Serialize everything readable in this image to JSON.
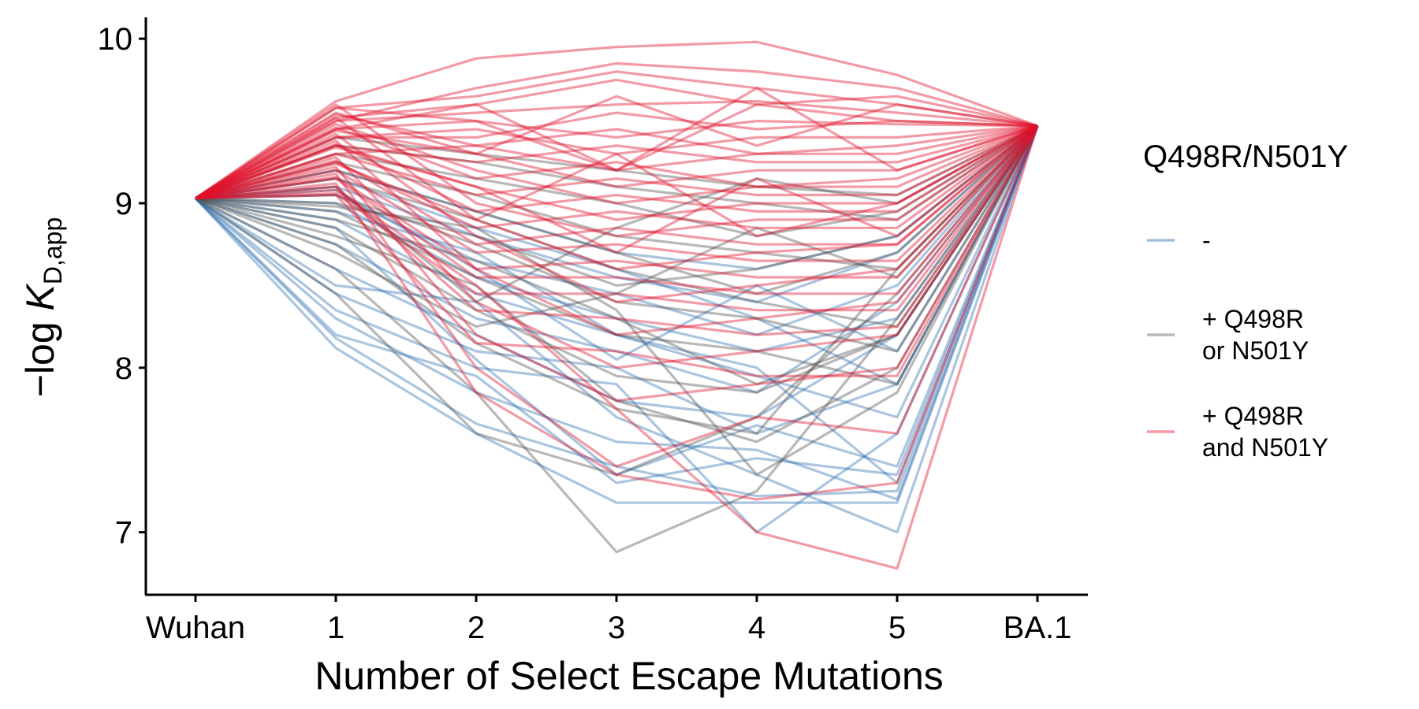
{
  "chart_data": {
    "type": "line",
    "xlabel": "Number of Select Escape Mutations",
    "ylabel_prefix": "−log ",
    "ylabel_var": "K",
    "ylabel_sub": "D,app",
    "categories": [
      "Wuhan",
      "1",
      "2",
      "3",
      "4",
      "5",
      "BA.1"
    ],
    "y_ticks": [
      "7",
      "8",
      "9",
      "10"
    ],
    "ylim": [
      6.62,
      10.13
    ],
    "grid": false,
    "legend": {
      "position": "right",
      "title": "Q498R/N501Y",
      "entries": [
        {
          "key": "none",
          "label_lines": [
            "-"
          ],
          "color": "#2166ac"
        },
        {
          "key": "one",
          "label_lines": [
            "+ Q498R",
            "or N501Y"
          ],
          "color": "#555555"
        },
        {
          "key": "both",
          "label_lines": [
            "+ Q498R",
            "and N501Y"
          ],
          "color": "#e0112b"
        }
      ]
    },
    "endpoints": {
      "start": 9.03,
      "end": 9.47
    },
    "series": [
      {
        "group": "none",
        "values": [
          9.03,
          8.12,
          7.6,
          7.18,
          7.18,
          7.18,
          9.47
        ]
      },
      {
        "group": "none",
        "values": [
          9.03,
          8.18,
          7.66,
          7.4,
          7.22,
          7.25,
          9.47
        ]
      },
      {
        "group": "none",
        "values": [
          9.03,
          8.2,
          7.95,
          7.3,
          7.45,
          7.35,
          9.47
        ]
      },
      {
        "group": "none",
        "values": [
          9.03,
          8.35,
          8.0,
          7.9,
          7.0,
          7.6,
          9.47
        ]
      },
      {
        "group": "none",
        "values": [
          9.03,
          8.45,
          8.1,
          8.0,
          7.6,
          7.9,
          9.47
        ]
      },
      {
        "group": "none",
        "values": [
          9.03,
          8.6,
          8.2,
          7.8,
          7.7,
          8.2,
          9.47
        ]
      },
      {
        "group": "none",
        "values": [
          9.03,
          8.75,
          8.3,
          8.1,
          7.85,
          8.4,
          9.47
        ]
      },
      {
        "group": "none",
        "values": [
          9.03,
          8.9,
          8.45,
          8.2,
          8.0,
          7.3,
          9.47
        ]
      },
      {
        "group": "none",
        "values": [
          9.03,
          9.0,
          8.55,
          8.3,
          8.1,
          8.3,
          9.47
        ]
      },
      {
        "group": "none",
        "values": [
          9.03,
          9.05,
          8.65,
          8.45,
          8.2,
          8.5,
          9.47
        ]
      },
      {
        "group": "none",
        "values": [
          9.03,
          9.1,
          8.8,
          8.55,
          8.4,
          8.7,
          9.47
        ]
      },
      {
        "group": "none",
        "values": [
          9.03,
          9.2,
          8.95,
          8.7,
          8.6,
          8.8,
          9.47
        ]
      },
      {
        "group": "none",
        "values": [
          9.03,
          8.3,
          7.85,
          7.55,
          7.5,
          7.2,
          9.47
        ]
      },
      {
        "group": "none",
        "values": [
          9.03,
          8.5,
          8.4,
          7.7,
          7.35,
          7.0,
          9.47
        ]
      },
      {
        "group": "none",
        "values": [
          9.03,
          8.95,
          8.7,
          8.2,
          7.95,
          7.7,
          9.47
        ]
      },
      {
        "group": "none",
        "values": [
          9.03,
          9.15,
          8.85,
          8.6,
          8.3,
          7.9,
          9.47
        ]
      },
      {
        "group": "none",
        "values": [
          9.03,
          8.85,
          8.05,
          7.35,
          7.65,
          7.4,
          9.47
        ]
      },
      {
        "group": "none",
        "values": [
          9.03,
          9.08,
          8.6,
          8.05,
          8.5,
          8.1,
          9.47
        ]
      },
      {
        "group": "one",
        "values": [
          9.03,
          9.35,
          9.25,
          9.1,
          9.0,
          8.9,
          9.47
        ]
      },
      {
        "group": "one",
        "values": [
          9.03,
          9.25,
          9.05,
          8.8,
          8.7,
          8.6,
          9.47
        ]
      },
      {
        "group": "one",
        "values": [
          9.03,
          9.15,
          8.9,
          8.6,
          8.4,
          8.25,
          9.47
        ]
      },
      {
        "group": "one",
        "values": [
          9.03,
          9.05,
          8.75,
          8.4,
          8.3,
          8.1,
          9.47
        ]
      },
      {
        "group": "one",
        "values": [
          9.03,
          8.95,
          8.55,
          8.2,
          8.1,
          7.9,
          9.47
        ]
      },
      {
        "group": "one",
        "values": [
          9.03,
          8.85,
          8.35,
          7.95,
          7.85,
          8.2,
          9.47
        ]
      },
      {
        "group": "one",
        "values": [
          9.03,
          8.75,
          8.15,
          7.75,
          7.6,
          8.6,
          9.47
        ]
      },
      {
        "group": "one",
        "values": [
          9.03,
          8.6,
          7.85,
          6.88,
          7.25,
          8.3,
          9.47
        ]
      },
      {
        "group": "one",
        "values": [
          9.03,
          8.45,
          7.6,
          7.35,
          7.7,
          8.45,
          9.47
        ]
      },
      {
        "group": "one",
        "values": [
          9.03,
          9.4,
          9.3,
          9.2,
          9.1,
          9.05,
          9.47
        ]
      },
      {
        "group": "one",
        "values": [
          9.03,
          9.3,
          9.15,
          9.0,
          8.8,
          8.95,
          9.47
        ]
      },
      {
        "group": "one",
        "values": [
          9.03,
          9.2,
          8.95,
          8.7,
          8.45,
          8.7,
          9.47
        ]
      },
      {
        "group": "one",
        "values": [
          9.03,
          9.0,
          8.8,
          8.5,
          8.6,
          8.8,
          9.47
        ]
      },
      {
        "group": "one",
        "values": [
          9.03,
          8.9,
          8.65,
          8.3,
          7.9,
          8.2,
          9.47
        ]
      },
      {
        "group": "one",
        "values": [
          9.03,
          8.8,
          8.5,
          7.8,
          7.55,
          8.0,
          9.47
        ]
      },
      {
        "group": "one",
        "values": [
          9.03,
          8.7,
          8.25,
          8.45,
          8.85,
          8.55,
          9.47
        ]
      },
      {
        "group": "one",
        "values": [
          9.03,
          9.1,
          8.4,
          8.85,
          9.15,
          9.0,
          9.47
        ]
      },
      {
        "group": "one",
        "values": [
          9.03,
          8.98,
          8.85,
          8.35,
          7.35,
          7.85,
          9.47
        ]
      },
      {
        "group": "both",
        "values": [
          9.03,
          9.62,
          9.88,
          9.95,
          9.98,
          9.78,
          9.47
        ]
      },
      {
        "group": "both",
        "values": [
          9.03,
          9.58,
          9.65,
          9.8,
          9.7,
          9.6,
          9.47
        ]
      },
      {
        "group": "both",
        "values": [
          9.03,
          9.5,
          9.55,
          9.6,
          9.62,
          9.55,
          9.47
        ]
      },
      {
        "group": "both",
        "values": [
          9.03,
          9.45,
          9.5,
          9.4,
          9.5,
          9.48,
          9.47
        ]
      },
      {
        "group": "both",
        "values": [
          9.03,
          9.4,
          9.45,
          9.3,
          9.4,
          9.4,
          9.47
        ]
      },
      {
        "group": "both",
        "values": [
          9.03,
          9.3,
          9.35,
          9.2,
          9.3,
          9.3,
          9.47
        ]
      },
      {
        "group": "both",
        "values": [
          9.03,
          9.55,
          9.3,
          9.1,
          9.2,
          9.2,
          9.47
        ]
      },
      {
        "group": "both",
        "values": [
          9.03,
          9.48,
          9.2,
          9.0,
          9.1,
          9.1,
          9.47
        ]
      },
      {
        "group": "both",
        "values": [
          9.03,
          9.35,
          9.1,
          8.9,
          9.0,
          9.0,
          9.47
        ]
      },
      {
        "group": "both",
        "values": [
          9.03,
          9.6,
          9.0,
          8.8,
          8.9,
          8.9,
          9.47
        ]
      },
      {
        "group": "both",
        "values": [
          9.03,
          9.52,
          8.9,
          8.6,
          8.7,
          8.75,
          9.47
        ]
      },
      {
        "group": "both",
        "values": [
          9.03,
          9.42,
          8.8,
          8.4,
          8.5,
          8.6,
          9.47
        ]
      },
      {
        "group": "both",
        "values": [
          9.03,
          9.38,
          8.6,
          8.2,
          8.3,
          8.4,
          9.47
        ]
      },
      {
        "group": "both",
        "values": [
          9.03,
          9.28,
          8.4,
          8.0,
          8.1,
          8.2,
          9.47
        ]
      },
      {
        "group": "both",
        "values": [
          9.03,
          9.22,
          8.2,
          7.8,
          7.9,
          8.0,
          9.47
        ]
      },
      {
        "group": "both",
        "values": [
          9.03,
          9.18,
          8.0,
          7.4,
          7.7,
          7.6,
          9.47
        ]
      },
      {
        "group": "both",
        "values": [
          9.03,
          9.12,
          7.85,
          7.35,
          7.2,
          7.3,
          9.47
        ]
      },
      {
        "group": "both",
        "values": [
          9.03,
          9.08,
          8.5,
          7.75,
          7.0,
          6.78,
          9.47
        ]
      },
      {
        "group": "both",
        "values": [
          9.03,
          9.5,
          9.7,
          9.85,
          9.8,
          9.7,
          9.47
        ]
      },
      {
        "group": "both",
        "values": [
          9.03,
          9.45,
          9.6,
          9.75,
          9.6,
          9.65,
          9.47
        ]
      },
      {
        "group": "both",
        "values": [
          9.03,
          9.4,
          9.4,
          9.55,
          9.45,
          9.5,
          9.47
        ]
      },
      {
        "group": "both",
        "values": [
          9.03,
          9.35,
          9.25,
          9.35,
          9.25,
          9.25,
          9.47
        ]
      },
      {
        "group": "both",
        "values": [
          9.03,
          9.3,
          9.05,
          9.15,
          9.05,
          9.05,
          9.47
        ]
      },
      {
        "group": "both",
        "values": [
          9.03,
          9.25,
          8.85,
          8.95,
          8.85,
          8.85,
          9.47
        ]
      },
      {
        "group": "both",
        "values": [
          9.03,
          9.2,
          8.7,
          8.75,
          8.65,
          8.65,
          9.47
        ]
      },
      {
        "group": "both",
        "values": [
          9.03,
          9.15,
          8.55,
          8.55,
          8.45,
          8.45,
          9.47
        ]
      },
      {
        "group": "both",
        "values": [
          9.03,
          9.1,
          8.35,
          8.3,
          8.2,
          8.25,
          9.47
        ]
      },
      {
        "group": "both",
        "values": [
          9.03,
          9.05,
          8.15,
          8.1,
          7.95,
          7.95,
          9.47
        ]
      },
      {
        "group": "both",
        "values": [
          9.03,
          9.58,
          9.5,
          9.2,
          9.6,
          9.5,
          9.47
        ]
      },
      {
        "group": "both",
        "values": [
          9.03,
          9.54,
          9.35,
          9.45,
          9.3,
          9.35,
          9.47
        ]
      },
      {
        "group": "both",
        "values": [
          9.03,
          9.46,
          9.15,
          9.25,
          9.1,
          9.15,
          9.47
        ]
      },
      {
        "group": "both",
        "values": [
          9.03,
          9.36,
          8.95,
          9.05,
          8.95,
          8.95,
          9.47
        ]
      },
      {
        "group": "both",
        "values": [
          9.03,
          9.26,
          8.75,
          8.85,
          8.75,
          8.75,
          9.47
        ]
      },
      {
        "group": "both",
        "values": [
          9.03,
          9.16,
          8.6,
          8.65,
          8.55,
          8.55,
          9.47
        ]
      },
      {
        "group": "both",
        "values": [
          9.03,
          9.06,
          8.45,
          8.45,
          8.35,
          8.35,
          9.47
        ]
      },
      {
        "group": "both",
        "values": [
          9.03,
          9.52,
          9.6,
          9.2,
          9.7,
          9.2,
          9.47
        ]
      },
      {
        "group": "both",
        "values": [
          9.03,
          9.44,
          9.3,
          9.65,
          9.35,
          9.6,
          9.47
        ]
      },
      {
        "group": "both",
        "values": [
          9.03,
          9.34,
          9.1,
          8.7,
          9.15,
          8.8,
          9.47
        ]
      },
      {
        "group": "both",
        "values": [
          9.03,
          9.24,
          8.9,
          9.3,
          8.8,
          9.0,
          9.47
        ]
      }
    ]
  }
}
